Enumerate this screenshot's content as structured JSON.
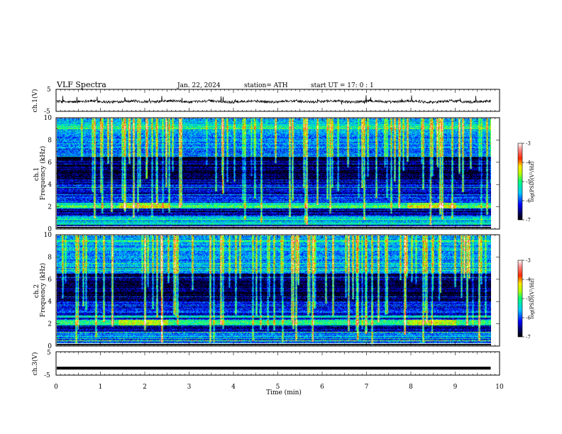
{
  "header": {
    "title": "VLF  Spectra",
    "date": "Jan. 22, 2024",
    "station": "station= ATH",
    "start_ut": "start  UT  =   17: 0  : 1"
  },
  "chart_data": [
    {
      "type": "line",
      "name": "ch1-waveform",
      "ylabel": "ch.1(V)",
      "ylim": [
        -5,
        5
      ],
      "ytick_labels": [
        "5",
        "-5"
      ],
      "xlim": [
        0,
        10
      ],
      "x_extent_min": 9.8,
      "baseline_v": -0.5,
      "noise_amplitude_v": 0.6,
      "spike_amplitude_v": 2.2
    },
    {
      "type": "heatmap",
      "name": "ch1-spectrogram",
      "ylabel": "ch.1\nFrequency  (kHz)",
      "ylim": [
        0,
        10
      ],
      "ytick_labels": [
        "0",
        "2",
        "4",
        "6",
        "8",
        "10"
      ],
      "xlim": [
        0,
        10
      ],
      "x_extent_min": 9.8,
      "z_range": [
        -7,
        -3
      ],
      "colorbar_label": "log(PSD)(V²/Hz)",
      "colorbar_ticks": [
        "-3",
        "-4",
        "-5",
        "-6",
        "-7"
      ],
      "colorscale": [
        [
          -7.0,
          "#000000"
        ],
        [
          -6.6,
          "#00006e"
        ],
        [
          -6.2,
          "#0000ff"
        ],
        [
          -5.6,
          "#00c8ff"
        ],
        [
          -5.0,
          "#00ff78"
        ],
        [
          -4.6,
          "#b4ff00"
        ],
        [
          -4.2,
          "#ffe600"
        ],
        [
          -3.8,
          "#ff2800"
        ],
        [
          -3.3,
          "#ff8c8c"
        ],
        [
          -3.0,
          "#ffffff"
        ]
      ],
      "features": {
        "strong_band_khz": [
          1.8,
          2.3
        ],
        "enhanced_segments_min": [
          [
            1.4,
            2.5
          ],
          [
            7.9,
            9.0
          ]
        ],
        "lower_hiss_khz": [
          0.3,
          1.2
        ],
        "upper_band_khz": [
          6.5,
          10
        ],
        "sferic_count": 90
      }
    },
    {
      "type": "heatmap",
      "name": "ch2-spectrogram",
      "ylabel": "ch.2\nFrequency  (kHz)",
      "ylim": [
        0,
        10
      ],
      "ytick_labels": [
        "0",
        "2",
        "4",
        "6",
        "8",
        "10"
      ],
      "xlim": [
        0,
        10
      ],
      "x_extent_min": 9.8,
      "z_range": [
        -7,
        -3
      ],
      "colorbar_label": "log(PSD)(V²/Hz)",
      "colorbar_ticks": [
        "-3",
        "-4",
        "-5",
        "-6",
        "-7"
      ],
      "colorscale": [
        [
          -7.0,
          "#000000"
        ],
        [
          -6.6,
          "#00006e"
        ],
        [
          -6.2,
          "#0000ff"
        ],
        [
          -5.6,
          "#00c8ff"
        ],
        [
          -5.0,
          "#00ff78"
        ],
        [
          -4.6,
          "#b4ff00"
        ],
        [
          -4.2,
          "#ffe600"
        ],
        [
          -3.8,
          "#ff2800"
        ],
        [
          -3.3,
          "#ff8c8c"
        ],
        [
          -3.0,
          "#ffffff"
        ]
      ],
      "features": {
        "strong_band_khz": [
          1.8,
          2.3
        ],
        "enhanced_segments_min": [
          [
            1.4,
            2.5
          ],
          [
            7.9,
            9.0
          ]
        ],
        "lower_hiss_khz": [
          0.2,
          1.2
        ],
        "upper_band_khz": [
          6.5,
          10
        ],
        "sferic_count": 90
      }
    },
    {
      "type": "line",
      "name": "ch3-waveform",
      "ylabel": "ch.3(V)",
      "ylim": [
        -5,
        5
      ],
      "ytick_labels": [
        "5",
        "-5"
      ],
      "xlim": [
        0,
        10
      ],
      "x_extent_min": 9.8,
      "constant_v": -2,
      "xlabel": "Time  (min)",
      "xtick_labels": [
        "0",
        "1",
        "2",
        "3",
        "4",
        "5",
        "6",
        "7",
        "8",
        "9",
        "10"
      ]
    }
  ]
}
